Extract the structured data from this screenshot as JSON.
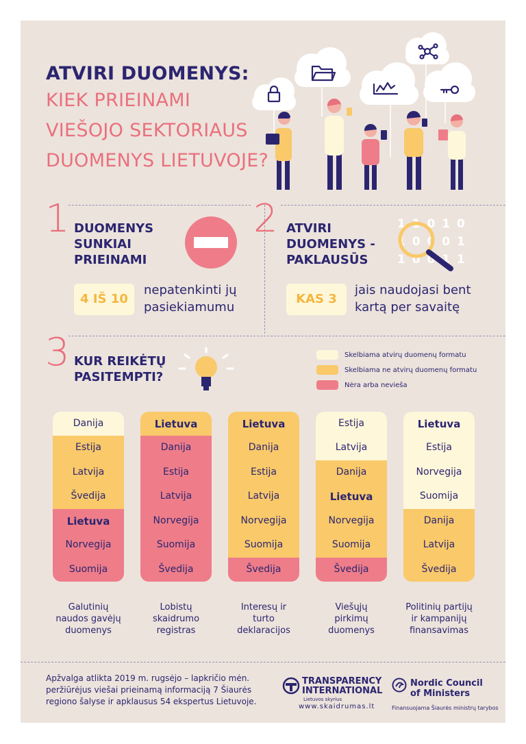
{
  "title": {
    "line1": "ATVIRI DUOMENYS:",
    "line2": "KIEK PRIEINAMI",
    "line3": "VIEŠOJO SEKTORIAUS",
    "line4": "DUOMENYS LIETUVOJE?"
  },
  "section1": {
    "number": "1",
    "title_l1": "DUOMENYS",
    "title_l2": "SUNKIAI",
    "title_l3": "PRIEINAMI",
    "chip": "4 IŠ 10",
    "desc_l1": "nepatenkinti jų",
    "desc_l2": "pasiekiamumu"
  },
  "section2": {
    "number": "2",
    "title_l1": "ATVIRI",
    "title_l2": "DUOMENYS -",
    "title_l3": "PAKLAUSŪS",
    "chip": "KAS 3",
    "desc_l1": "jais naudojasi bent",
    "desc_l2": "kartą per savaitę",
    "binary": [
      "1 1 0 1 0",
      "1 0 0 0 1",
      "1 0 0 1 1"
    ]
  },
  "section3": {
    "number": "3",
    "title_l1": "KUR REIKĖTŲ",
    "title_l2": "PASITEMPTI?"
  },
  "legend": [
    {
      "label": "Skelbiama atvirų duomenų formatu",
      "color": "#fff7da"
    },
    {
      "label": "Skelbiama ne atvirų duomenų formatu",
      "color": "#f9c96a"
    },
    {
      "label": "Nėra arba neviešа",
      "color": "#ee7d89"
    }
  ],
  "colors": {
    "open": "#fff7da",
    "closed": "#f9c96a",
    "none": "#ee7d89",
    "navy": "#2b2570",
    "pink": "#e9707d"
  },
  "columns": [
    {
      "caption": [
        "Galutinių",
        "naudos gavėjų",
        "duomenys"
      ],
      "segments": [
        {
          "type": "open",
          "count": 1
        },
        {
          "type": "closed",
          "count": 3
        },
        {
          "type": "none",
          "count": 3
        }
      ],
      "items": [
        "Danija",
        "Estija",
        "Latvija",
        "Švedija",
        "Lietuva",
        "Norvegija",
        "Suomija"
      ],
      "bold": "Lietuva"
    },
    {
      "caption": [
        "Lobistų",
        "skaidrumo",
        "registras"
      ],
      "segments": [
        {
          "type": "closed",
          "count": 1
        },
        {
          "type": "none",
          "count": 6
        }
      ],
      "items": [
        "Lietuva",
        "Danija",
        "Estija",
        "Latvija",
        "Norvegija",
        "Suomija",
        "Švedija"
      ],
      "bold": "Lietuva"
    },
    {
      "caption": [
        "Interesų ir",
        "turto",
        "deklaracijos"
      ],
      "segments": [
        {
          "type": "closed",
          "count": 6
        },
        {
          "type": "none",
          "count": 1
        }
      ],
      "items": [
        "Lietuva",
        "Danija",
        "Estija",
        "Latvija",
        "Norvegija",
        "Suomija",
        "Švedija"
      ],
      "bold": "Lietuva"
    },
    {
      "caption": [
        "Viešųjų",
        "pirkimų",
        "duomenys"
      ],
      "segments": [
        {
          "type": "open",
          "count": 2
        },
        {
          "type": "closed",
          "count": 4
        },
        {
          "type": "none",
          "count": 1
        }
      ],
      "items": [
        "Estija",
        "Latvija",
        "Danija",
        "Lietuva",
        "Norvegija",
        "Suomija",
        "Švedija"
      ],
      "bold": "Lietuva"
    },
    {
      "caption": [
        "Politinių partijų",
        "ir kampanijų",
        "finansavimas"
      ],
      "segments": [
        {
          "type": "open",
          "count": 4
        },
        {
          "type": "closed",
          "count": 3
        }
      ],
      "items": [
        "Lietuva",
        "Estija",
        "Norvegija",
        "Suomija",
        "Danija",
        "Latvija",
        "Švedija"
      ],
      "bold": "Lietuva"
    }
  ],
  "footer": {
    "text_l1": "Apžvalga atlikta 2019 m. rugsėjo – lapkričio mėn.",
    "text_l2": "peržiūrėjus viešai prieinamą informaciją 7 Šiaurės",
    "text_l3": "regiono šalyse ir apklausus 54 ekspertus Lietuvoje.",
    "ti_l1": "TRANSPARENCY",
    "ti_l2": "INTERNATIONAL",
    "ti_l3": "Lietuvos skyrius",
    "ti_url": "www.skaidrumas.lt",
    "ncm_l1": "Nordic Council",
    "ncm_l2": "of Ministers",
    "ncm_sub": "Finansuojama Šiaurės ministrų tarybos"
  }
}
